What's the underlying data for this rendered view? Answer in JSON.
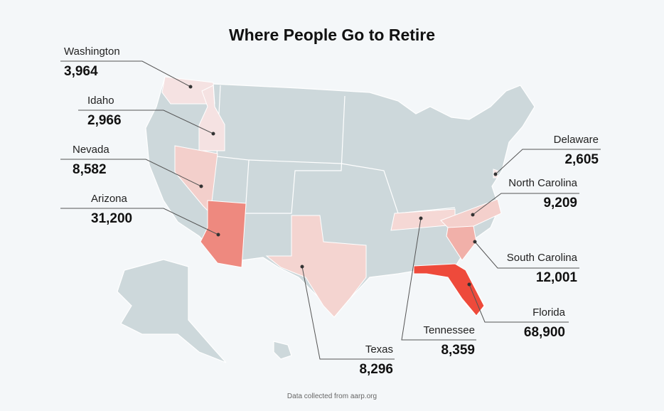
{
  "title": "Where People Go to Retire",
  "footnote": "Data collected from aarp.org",
  "states": [
    {
      "name": "Washington",
      "value": 3964,
      "value_label": "3,964",
      "color": "#f5e2e2"
    },
    {
      "name": "Idaho",
      "value": 2966,
      "value_label": "2,966",
      "color": "#f5e2e2"
    },
    {
      "name": "Nevada",
      "value": 8582,
      "value_label": "8,582",
      "color": "#f3cfcb"
    },
    {
      "name": "Arizona",
      "value": 31200,
      "value_label": "31,200",
      "color": "#ee897f"
    },
    {
      "name": "Texas",
      "value": 8296,
      "value_label": "8,296",
      "color": "#f4d4d0"
    },
    {
      "name": "Tennessee",
      "value": 8359,
      "value_label": "8,359",
      "color": "#f5d8d5"
    },
    {
      "name": "North Carolina",
      "value": 9209,
      "value_label": "9,209",
      "color": "#f4d0cc"
    },
    {
      "name": "South Carolina",
      "value": 12001,
      "value_label": "12,001",
      "color": "#f1b0a9"
    },
    {
      "name": "Florida",
      "value": 68900,
      "value_label": "68,900",
      "color": "#ee4a3b"
    },
    {
      "name": "Delaware",
      "value": 2605,
      "value_label": "2,605",
      "color": "#f5e2e2"
    }
  ]
}
